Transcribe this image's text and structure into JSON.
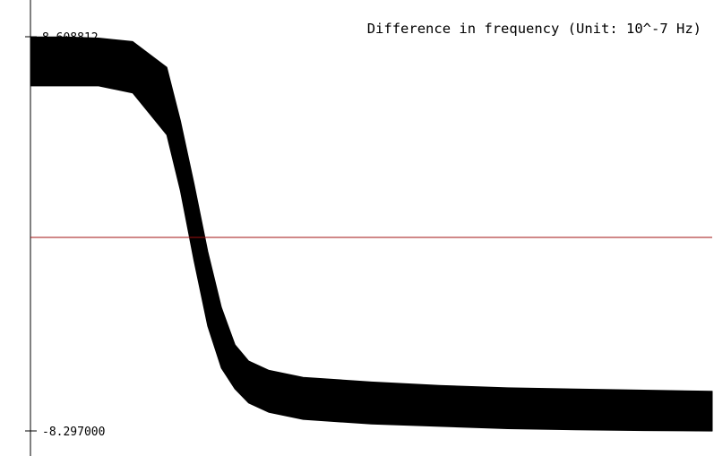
{
  "chart_data": {
    "type": "line",
    "title": "Difference in frequency (Unit: 10^-7 Hz)",
    "ylim": [
      -8.297,
      8.608812
    ],
    "ytick_labels": [
      "8.608812",
      "-8.297000"
    ],
    "reference_line": {
      "y": 0,
      "color": "#a01010"
    },
    "series": [
      {
        "color": "#000000",
        "x": [
          0,
          0.05,
          0.1,
          0.15,
          0.2,
          0.22,
          0.24,
          0.26,
          0.28,
          0.3,
          0.32,
          0.35,
          0.4,
          0.5,
          0.6,
          0.7,
          0.8,
          0.9,
          1.0
        ],
        "lower": [
          6.5,
          6.5,
          6.5,
          6.2,
          4.4,
          2.0,
          -1.0,
          -3.8,
          -5.6,
          -6.5,
          -7.1,
          -7.5,
          -7.8,
          -8.0,
          -8.1,
          -8.2,
          -8.25,
          -8.28,
          -8.3
        ],
        "upper": [
          8.6,
          8.6,
          8.55,
          8.4,
          7.3,
          5.0,
          2.3,
          -0.6,
          -3.0,
          -4.6,
          -5.3,
          -5.7,
          -6.0,
          -6.2,
          -6.35,
          -6.45,
          -6.5,
          -6.55,
          -6.6
        ]
      }
    ],
    "grid": false
  }
}
